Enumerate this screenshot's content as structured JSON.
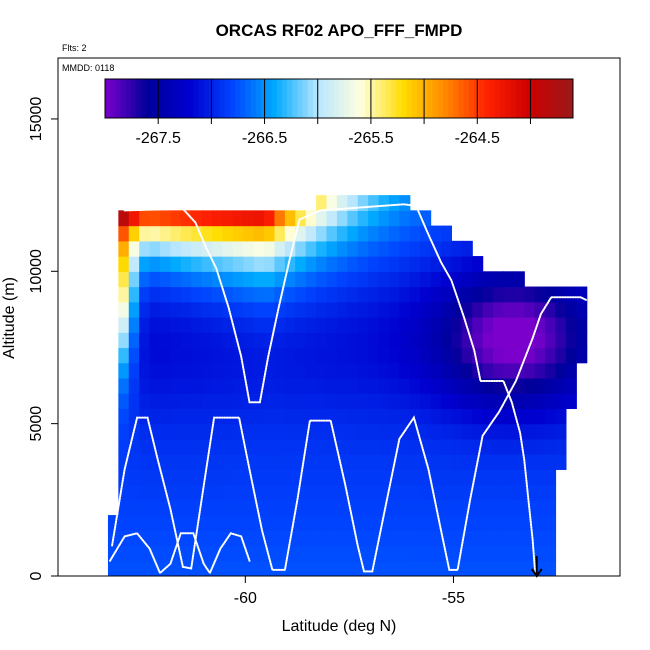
{
  "chart_data": {
    "type": "heatmap",
    "title": "ORCAS RF02 APO_FFF_FMPD",
    "flights_label": "Flts: 2",
    "date_label": "MMDD: 0118",
    "xlabel": "Latitude (deg N)",
    "ylabel": "Altitude (m)",
    "xlim": [
      -64.5,
      -51.0
    ],
    "ylim": [
      0,
      17000
    ],
    "x_ticks": [
      -60,
      -55
    ],
    "x_tick_labels": [
      "-60",
      "-55"
    ],
    "y_ticks": [
      0,
      5000,
      10000,
      15000
    ],
    "y_tick_labels": [
      "0",
      "5000",
      "10000",
      "15000"
    ],
    "colorbar": {
      "range": [
        -268.0,
        -263.6
      ],
      "ticks": [
        -267.5,
        -266.5,
        -265.5,
        -264.5
      ],
      "tick_labels": [
        "-267.5",
        "-266.5",
        "-265.5",
        "-264.5"
      ],
      "colors": [
        "#7b00cc",
        "#00009a",
        "#0000d0",
        "#0045ff",
        "#00aaff",
        "#b8e6ff",
        "#ffffe0",
        "#ffdd00",
        "#ff8800",
        "#ff2000",
        "#cc0000",
        "#9a1a1a"
      ]
    },
    "flight_track": [
      [
        -63.2,
        1000
      ],
      [
        -62.9,
        3500
      ],
      [
        -62.6,
        5200
      ],
      [
        -62.35,
        5200
      ],
      [
        -62.1,
        3800
      ],
      [
        -61.8,
        2200
      ],
      [
        -61.5,
        300
      ],
      [
        -61.3,
        250
      ],
      [
        -61.05,
        2500
      ],
      [
        -60.75,
        5200
      ],
      [
        -60.15,
        5200
      ],
      [
        -59.9,
        3500
      ],
      [
        -59.6,
        1500
      ],
      [
        -59.35,
        200
      ],
      [
        -59.05,
        200
      ],
      [
        -58.75,
        2500
      ],
      [
        -58.45,
        5100
      ],
      [
        -57.95,
        5100
      ],
      [
        -57.6,
        3000
      ],
      [
        -57.3,
        1000
      ],
      [
        -57.15,
        150
      ],
      [
        -56.95,
        150
      ],
      [
        -56.6,
        2500
      ],
      [
        -56.3,
        4500
      ],
      [
        -55.95,
        5200
      ],
      [
        -55.6,
        3500
      ],
      [
        -55.3,
        1500
      ],
      [
        -55.1,
        200
      ],
      [
        -54.9,
        200
      ],
      [
        -54.6,
        2500
      ],
      [
        -54.3,
        4600
      ],
      [
        -53.9,
        5400
      ],
      [
        -53.5,
        6400
      ],
      [
        -53.1,
        7800
      ],
      [
        -52.9,
        8600
      ],
      [
        -52.65,
        9150
      ],
      [
        -51.95,
        9150
      ],
      [
        -51.8,
        9050
      ]
    ],
    "flight_track_2": [
      [
        -62.9,
        12000
      ],
      [
        -61.5,
        12050
      ],
      [
        -61.2,
        11600
      ],
      [
        -60.95,
        10800
      ],
      [
        -60.7,
        10100
      ],
      [
        -60.4,
        8800
      ],
      [
        -60.1,
        7200
      ],
      [
        -59.9,
        5700
      ],
      [
        -59.65,
        5700
      ],
      [
        -59.45,
        7200
      ],
      [
        -59.2,
        8800
      ],
      [
        -58.95,
        10300
      ],
      [
        -58.7,
        11700
      ],
      [
        -58.2,
        12000
      ],
      [
        -56.2,
        12200
      ],
      [
        -55.9,
        12150
      ],
      [
        -55.6,
        11200
      ],
      [
        -55.3,
        10300
      ],
      [
        -55.05,
        9700
      ],
      [
        -54.75,
        8500
      ],
      [
        -54.5,
        7400
      ],
      [
        -54.35,
        6400
      ],
      [
        -53.8,
        6400
      ],
      [
        -53.6,
        5700
      ],
      [
        -53.4,
        4700
      ],
      [
        -53.3,
        3800
      ],
      [
        -53.2,
        2500
      ],
      [
        -53.1,
        1200
      ],
      [
        -53.05,
        300
      ],
      [
        -53.0,
        -100
      ]
    ],
    "flight_track_3": [
      [
        -63.25,
        500
      ],
      [
        -62.9,
        1300
      ],
      [
        -62.6,
        1400
      ],
      [
        -62.3,
        900
      ],
      [
        -62.05,
        100
      ],
      [
        -61.8,
        400
      ],
      [
        -61.55,
        1400
      ],
      [
        -61.25,
        1400
      ],
      [
        -61.0,
        400
      ],
      [
        -60.85,
        100
      ],
      [
        -60.6,
        900
      ],
      [
        -60.35,
        1400
      ],
      [
        -60.1,
        1300
      ],
      [
        -59.9,
        500
      ]
    ],
    "end_marker": {
      "x": -53.0,
      "y": 0
    }
  }
}
